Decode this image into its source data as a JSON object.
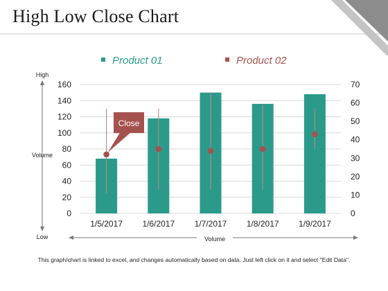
{
  "page": {
    "title": "High Low Close Chart"
  },
  "footnote": "This graph/chart is linked to excel, and changes automatically based on data. Just left click on it and select \"Edit Data\".",
  "colors": {
    "bar": "#2b9a8a",
    "marker": "#a5524f",
    "callout": "#a5524f",
    "line": "#b98b8b",
    "grid": "#d9d9d9",
    "axis_text": "#222222"
  },
  "chart_data": {
    "type": "bar",
    "categories": [
      "1/5/2017",
      "1/6/2017",
      "1/7/2017",
      "1/8/2017",
      "1/9/2017"
    ],
    "series": [
      {
        "name": "Product 01",
        "axis": "left",
        "values": [
          68,
          118,
          150,
          136,
          148
        ]
      },
      {
        "name": "Product 02",
        "axis": "right",
        "kind": "high-low-close",
        "high": [
          57,
          57,
          65,
          59,
          57
        ],
        "low": [
          11,
          13,
          13,
          13,
          35
        ],
        "close": [
          32,
          35,
          34,
          35,
          43
        ]
      }
    ],
    "y_left": {
      "ticks": [
        0,
        20,
        40,
        60,
        80,
        100,
        120,
        140,
        160
      ],
      "ylim": [
        0,
        160
      ]
    },
    "y_right": {
      "ticks": [
        0,
        10,
        20,
        30,
        40,
        50,
        60,
        70
      ],
      "ylim": [
        0,
        70
      ]
    },
    "left_axis": {
      "top_label": "High",
      "mid_label": "Volume",
      "bottom_label": "Low"
    },
    "bottom_axis": {
      "label": "Volume"
    },
    "annotation": {
      "text": "Close"
    },
    "legend": {
      "position": "top"
    },
    "grid": true
  }
}
